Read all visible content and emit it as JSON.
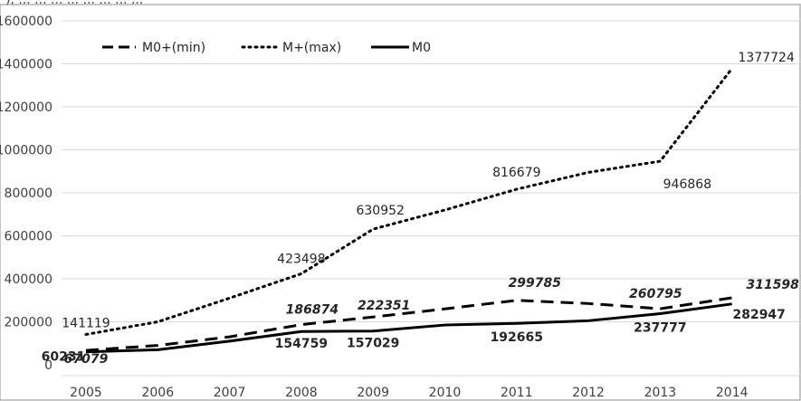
{
  "chart_data": {
    "type": "line",
    "title": "",
    "xlabel": "",
    "ylabel": "",
    "categories": [
      "2005",
      "2006",
      "2007",
      "2008",
      "2009",
      "2010",
      "2011",
      "2012",
      "2013",
      "2014"
    ],
    "ylim": [
      0,
      1600000
    ],
    "y_ticks": [
      "0",
      "200000",
      "400000",
      "600000",
      "800000",
      "1000000",
      "1200000",
      "1400000",
      "1600000"
    ],
    "grid": "horizontal",
    "legend_position": "top-left",
    "series": [
      {
        "name": "M0+(min)",
        "style": "dashed",
        "color": "#000000",
        "values": [
          67079,
          90000,
          130000,
          186874,
          222351,
          260000,
          299785,
          285000,
          260795,
          311598
        ],
        "labeled": [
          true,
          false,
          false,
          true,
          true,
          false,
          true,
          false,
          true,
          true
        ],
        "labels": [
          "67079",
          "",
          "",
          "186874",
          "222351",
          "",
          "299785",
          "",
          "260795",
          "311598"
        ]
      },
      {
        "name": "M+(max)",
        "style": "dotted",
        "color": "#000000",
        "values": [
          141119,
          200000,
          310000,
          423498,
          630952,
          720000,
          816679,
          895000,
          946868,
          1377724
        ],
        "labeled": [
          true,
          false,
          false,
          true,
          true,
          false,
          true,
          false,
          true,
          true
        ],
        "labels": [
          "141119",
          "",
          "",
          "423498",
          "630952",
          "",
          "816679",
          "",
          "946868",
          "1377724"
        ]
      },
      {
        "name": "M0",
        "style": "solid",
        "color": "#000000",
        "values": [
          60231,
          70000,
          110000,
          154759,
          157029,
          185000,
          192665,
          205000,
          237777,
          282947
        ],
        "labeled": [
          true,
          false,
          false,
          true,
          true,
          false,
          true,
          false,
          true,
          true
        ],
        "labels": [
          "60231",
          "",
          "",
          "154759",
          "157029",
          "",
          "192665",
          "",
          "237777",
          "282947"
        ]
      }
    ]
  },
  "header_fragment": "), ... ... ... ... ... ... ... ..."
}
